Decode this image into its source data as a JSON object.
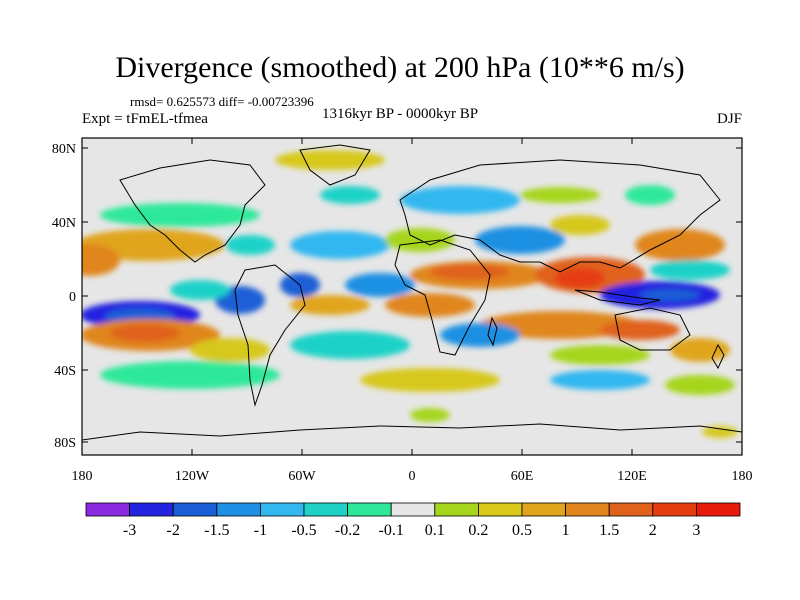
{
  "title": "Divergence (smoothed) at 200 hPa (10**6 m/s)",
  "stats": "rmsd= 0.625573 diff= -0.00723396",
  "experiment": "Expt = tFmEL-tfmea",
  "period": "1316kyr BP - 0000kyr BP",
  "season": "DJF",
  "map": {
    "background_color": "#e6e6e6",
    "lat_ticks": [
      "80N",
      "40N",
      "0",
      "40S",
      "80S"
    ],
    "lon_ticks": [
      "180",
      "120W",
      "60W",
      "0",
      "60E",
      "120E",
      "180"
    ]
  },
  "colorbar": {
    "colors": [
      "#8a2be2",
      "#2424e0",
      "#1a5ed6",
      "#1f90e3",
      "#33b7f0",
      "#1fd2c8",
      "#2ee89a",
      "#e6e6e6",
      "#a6d61c",
      "#d7c81a",
      "#e0a51c",
      "#e0861c",
      "#e0621c",
      "#e63c12",
      "#e81a0a"
    ],
    "labels": [
      "-3",
      "-2",
      "-1.5",
      "-1",
      "-0.5",
      "-0.2",
      "-0.1",
      "0.1",
      "0.2",
      "0.5",
      "1",
      "1.5",
      "2",
      "3"
    ]
  }
}
